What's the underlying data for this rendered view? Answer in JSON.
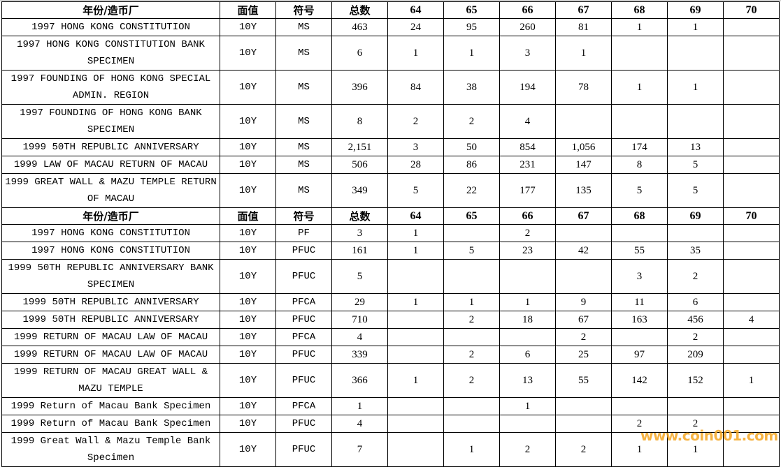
{
  "columns": [
    "年份/造币厂",
    "面值",
    "符号",
    "总数",
    "64",
    "65",
    "66",
    "67",
    "68",
    "69",
    "70"
  ],
  "sections": [
    {
      "rows": [
        {
          "name": "1997 HONG KONG CONSTITUTION",
          "denom": "10Y",
          "symbol": "MS",
          "total": "463",
          "grades": [
            "24",
            "95",
            "260",
            "81",
            "1",
            "1",
            ""
          ],
          "tall": false
        },
        {
          "name": "1997 HONG KONG CONSTITUTION BANK SPECIMEN",
          "denom": "10Y",
          "symbol": "MS",
          "total": "6",
          "grades": [
            "1",
            "1",
            "3",
            "1",
            "",
            "",
            ""
          ],
          "tall": true
        },
        {
          "name": "1997 FOUNDING OF HONG KONG SPECIAL ADMIN. REGION",
          "denom": "10Y",
          "symbol": "MS",
          "total": "396",
          "grades": [
            "84",
            "38",
            "194",
            "78",
            "1",
            "1",
            ""
          ],
          "tall": true
        },
        {
          "name": "1997 FOUNDING OF HONG KONG BANK SPECIMEN",
          "denom": "10Y",
          "symbol": "MS",
          "total": "8",
          "grades": [
            "2",
            "2",
            "4",
            "",
            "",
            "",
            ""
          ],
          "tall": true
        },
        {
          "name": "1999 50TH REPUBLIC ANNIVERSARY",
          "denom": "10Y",
          "symbol": "MS",
          "total": "2,151",
          "grades": [
            "3",
            "50",
            "854",
            "1,056",
            "174",
            "13",
            ""
          ],
          "tall": false
        },
        {
          "name": "1999 LAW OF MACAU RETURN OF MACAU",
          "denom": "10Y",
          "symbol": "MS",
          "total": "506",
          "grades": [
            "28",
            "86",
            "231",
            "147",
            "8",
            "5",
            ""
          ],
          "tall": false
        },
        {
          "name": "1999 GREAT WALL & MAZU TEMPLE RETURN OF MACAU",
          "denom": "10Y",
          "symbol": "MS",
          "total": "349",
          "grades": [
            "5",
            "22",
            "177",
            "135",
            "5",
            "5",
            ""
          ],
          "tall": true
        }
      ]
    },
    {
      "rows": [
        {
          "name": "1997 HONG KONG CONSTITUTION",
          "denom": "10Y",
          "symbol": "PF",
          "total": "3",
          "grades": [
            "1",
            "",
            "2",
            "",
            "",
            "",
            ""
          ],
          "tall": false
        },
        {
          "name": "1997 HONG KONG CONSTITUTION",
          "denom": "10Y",
          "symbol": "PFUC",
          "total": "161",
          "grades": [
            "1",
            "5",
            "23",
            "42",
            "55",
            "35",
            ""
          ],
          "tall": false
        },
        {
          "name": "1999 50TH REPUBLIC ANNIVERSARY BANK SPECIMEN",
          "denom": "10Y",
          "symbol": "PFUC",
          "total": "5",
          "grades": [
            "",
            "",
            "",
            "",
            "3",
            "2",
            ""
          ],
          "tall": true
        },
        {
          "name": "1999 50TH REPUBLIC ANNIVERSARY",
          "denom": "10Y",
          "symbol": "PFCA",
          "total": "29",
          "grades": [
            "1",
            "1",
            "1",
            "9",
            "11",
            "6",
            ""
          ],
          "tall": false
        },
        {
          "name": "1999 50TH REPUBLIC ANNIVERSARY",
          "denom": "10Y",
          "symbol": "PFUC",
          "total": "710",
          "grades": [
            "",
            "2",
            "18",
            "67",
            "163",
            "456",
            "4"
          ],
          "tall": false
        },
        {
          "name": "1999 RETURN OF MACAU LAW OF MACAU",
          "denom": "10Y",
          "symbol": "PFCA",
          "total": "4",
          "grades": [
            "",
            "",
            "",
            "2",
            "",
            "2",
            ""
          ],
          "tall": false
        },
        {
          "name": "1999 RETURN OF MACAU LAW OF MACAU",
          "denom": "10Y",
          "symbol": "PFUC",
          "total": "339",
          "grades": [
            "",
            "2",
            "6",
            "25",
            "97",
            "209",
            ""
          ],
          "tall": false
        },
        {
          "name": "1999 RETURN OF MACAU GREAT WALL & MAZU TEMPLE",
          "denom": "10Y",
          "symbol": "PFUC",
          "total": "366",
          "grades": [
            "1",
            "2",
            "13",
            "55",
            "142",
            "152",
            "1"
          ],
          "tall": true
        },
        {
          "name": "1999 Return of Macau Bank Specimen",
          "denom": "10Y",
          "symbol": "PFCA",
          "total": "1",
          "grades": [
            "",
            "",
            "1",
            "",
            "",
            "",
            ""
          ],
          "tall": false
        },
        {
          "name": "1999 Return of Macau Bank Specimen",
          "denom": "10Y",
          "symbol": "PFUC",
          "total": "4",
          "grades": [
            "",
            "",
            "",
            "",
            "2",
            "2",
            ""
          ],
          "tall": false
        },
        {
          "name": "1999 Great Wall & Mazu Temple Bank Specimen",
          "denom": "10Y",
          "symbol": "PFUC",
          "total": "7",
          "grades": [
            "",
            "1",
            "2",
            "2",
            "1",
            "1",
            ""
          ],
          "tall": true
        }
      ]
    }
  ],
  "watermark": "www.coin001.com",
  "watermark_color": "#f5a623"
}
